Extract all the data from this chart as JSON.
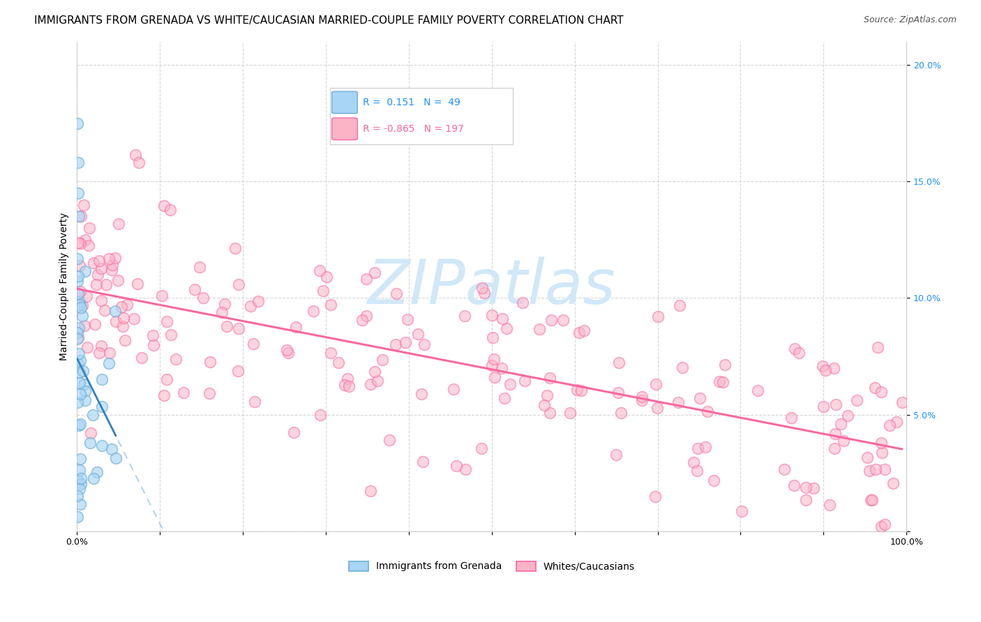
{
  "title": "IMMIGRANTS FROM GRENADA VS WHITE/CAUCASIAN MARRIED-COUPLE FAMILY POVERTY CORRELATION CHART",
  "source": "Source: ZipAtlas.com",
  "ylabel": "Married-Couple Family Poverty",
  "xlim": [
    0,
    1.0
  ],
  "ylim": [
    0,
    0.21
  ],
  "x_tick_vals": [
    0.0,
    0.1,
    0.2,
    0.3,
    0.4,
    0.5,
    0.6,
    0.7,
    0.8,
    0.9,
    1.0
  ],
  "x_tick_labels": [
    "0.0%",
    "",
    "",
    "",
    "",
    "",
    "",
    "",
    "",
    "",
    "100.0%"
  ],
  "y_tick_vals": [
    0.0,
    0.05,
    0.1,
    0.15,
    0.2
  ],
  "y_tick_labels": [
    "",
    "5.0%",
    "10.0%",
    "15.0%",
    "20.0%"
  ],
  "blue_fill_color": "#a8d4f5",
  "blue_edge_color": "#6baed6",
  "pink_fill_color": "#fbb4c6",
  "pink_edge_color": "#f768a1",
  "blue_line_color": "#3182bd",
  "blue_dash_color": "#9ecae1",
  "pink_line_color": "#f768a1",
  "blue_r": 0.151,
  "blue_n": 49,
  "pink_r": -0.865,
  "pink_n": 197,
  "watermark_color": "#d0e8f8",
  "title_fontsize": 11,
  "label_fontsize": 10,
  "tick_fontsize": 9,
  "source_fontsize": 9
}
